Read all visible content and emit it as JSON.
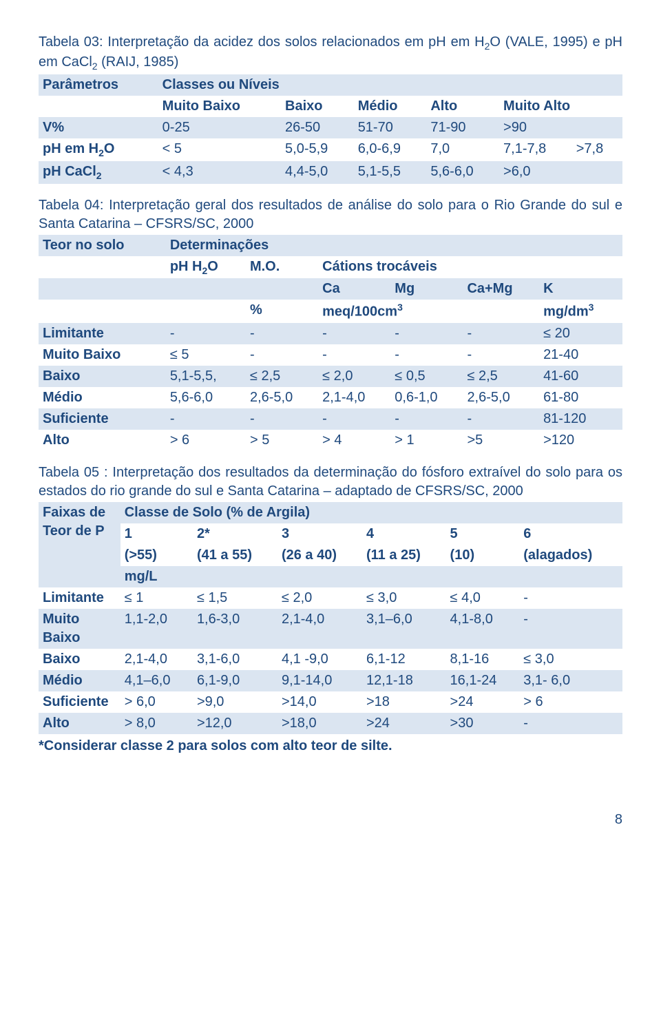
{
  "colors": {
    "text": "#1f497d",
    "band": "#dbe5f1",
    "bg": "#ffffff"
  },
  "t3": {
    "caption_a": "Tabela 03: Interpretação da acidez dos solos relacionados em pH em H",
    "caption_b": "O (VALE, 1995) e pH em CaCl",
    "caption_c": " (RAIJ, 1985)",
    "h_param": "Parâmetros",
    "h_classes": "Classes ou Níveis",
    "h_mb": "Muito Baixo",
    "h_b": "Baixo",
    "h_m": "Médio",
    "h_a": "Alto",
    "h_ma": "Muito Alto",
    "r1_p": "V%",
    "r1": [
      "0-25",
      "26-50",
      "51-70",
      "71-90",
      ">90"
    ],
    "r2_p_a": "pH em H",
    "r2_p_b": "O",
    "r2": [
      "< 5",
      "5,0-5,9",
      "6,0-6,9",
      "7,0",
      "7,1-7,8",
      ">7,8"
    ],
    "r3_p_a": "pH CaCl",
    "r3": [
      "< 4,3",
      "4,4-5,0",
      "5,1-5,5",
      "5,6-6,0",
      ">6,0"
    ]
  },
  "t4": {
    "caption": "Tabela 04: Interpretação geral dos resultados de análise do solo para o Rio Grande do sul e Santa Catarina – CFSRS/SC, 2000",
    "h_teor": "Teor no solo",
    "h_det": "Determinações",
    "h_ph_a": "pH H",
    "h_ph_b": "O",
    "h_mo": "M.O.",
    "h_cat": "Cátions trocáveis",
    "h_ca": "Ca",
    "h_mg": "Mg",
    "h_camg": "Ca+Mg",
    "h_k": "K",
    "u_pct": "%",
    "u_meq_a": "meq/100cm",
    "u_mgdm_a": "mg/dm",
    "rows": [
      {
        "l": "Limitante",
        "v": [
          "-",
          "-",
          "-",
          "-",
          "-",
          "≤ 20"
        ]
      },
      {
        "l": "Muito Baixo",
        "v": [
          "≤ 5",
          "-",
          "-",
          "-",
          "-",
          "21-40"
        ]
      },
      {
        "l": "Baixo",
        "v": [
          "5,1-5,5,",
          "≤ 2,5",
          "≤ 2,0",
          "≤ 0,5",
          "≤ 2,5",
          "41-60"
        ]
      },
      {
        "l": "Médio",
        "v": [
          "5,6-6,0",
          "2,6-5,0",
          "2,1-4,0",
          "0,6-1,0",
          "2,6-5,0",
          "61-80"
        ]
      },
      {
        "l": "Suficiente",
        "v": [
          "-",
          "-",
          "-",
          "-",
          "-",
          "81-120"
        ]
      },
      {
        "l": "Alto",
        "v": [
          "> 6",
          "> 5",
          "> 4",
          "> 1",
          ">5",
          ">120"
        ]
      }
    ]
  },
  "t5": {
    "caption": "Tabela 05 : Interpretação dos resultados da determinação do fósforo extraível do solo para os estados do rio grande do sul e Santa Catarina – adaptado de CFSRS/SC, 2000",
    "h_faixas": "Faixas de Teor de P",
    "h_classe": "Classe de Solo (% de Argila)",
    "cols_top": [
      "1",
      "2*",
      "3",
      "4",
      "5",
      "6"
    ],
    "cols_sub": [
      "(>55)",
      "(41 a 55)",
      "(26 a 40)",
      "(11 a 25)",
      "(10)",
      "(alagados)"
    ],
    "unit": "mg/L",
    "rows": [
      {
        "l": "Limitante",
        "v": [
          "≤ 1",
          "≤ 1,5",
          "≤ 2,0",
          "≤ 3,0",
          "≤ 4,0",
          "-"
        ]
      },
      {
        "l": "Muito Baixo",
        "v": [
          "1,1-2,0",
          "1,6-3,0",
          "2,1-4,0",
          "3,1–6,0",
          "4,1-8,0",
          "-"
        ]
      },
      {
        "l": "Baixo",
        "v": [
          "2,1-4,0",
          "3,1-6,0",
          "4,1 -9,0",
          "6,1-12",
          "8,1-16",
          "≤ 3,0"
        ]
      },
      {
        "l": "Médio",
        "v": [
          "4,1–6,0",
          "6,1-9,0",
          "9,1-14,0",
          "12,1-18",
          "16,1-24",
          "3,1- 6,0"
        ]
      },
      {
        "l": "Suficiente",
        "v": [
          "> 6,0",
          ">9,0",
          ">14,0",
          ">18",
          ">24",
          "> 6"
        ]
      },
      {
        "l": "Alto",
        "v": [
          "> 8,0",
          ">12,0",
          ">18,0",
          ">24",
          ">30",
          "-"
        ]
      }
    ],
    "footnote": "*Considerar classe 2 para solos com alto teor de silte."
  },
  "page": "8"
}
